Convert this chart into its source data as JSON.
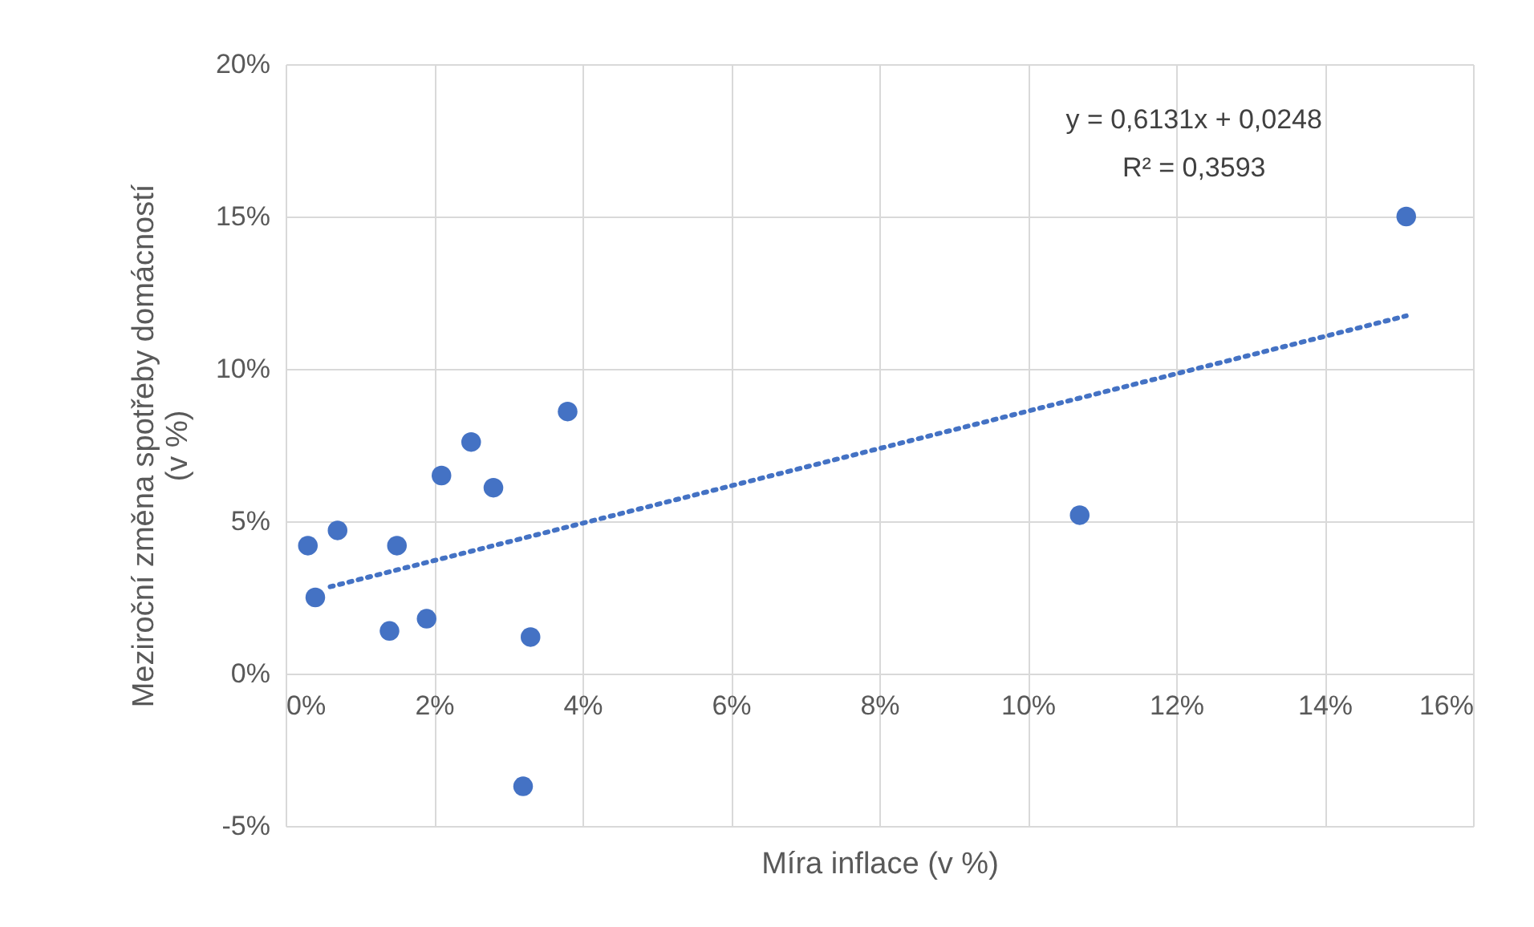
{
  "chart_data": {
    "type": "scatter",
    "xlabel": "Míra inflace (v %)",
    "ylabel": "Meziroční změna spotřeby domácností\n(v %)",
    "xlim": [
      0,
      16
    ],
    "ylim": [
      -5,
      20
    ],
    "xticks": [
      {
        "value": 0,
        "label": "0%"
      },
      {
        "value": 2,
        "label": "2%"
      },
      {
        "value": 4,
        "label": "4%"
      },
      {
        "value": 6,
        "label": "6%"
      },
      {
        "value": 8,
        "label": "8%"
      },
      {
        "value": 10,
        "label": "10%"
      },
      {
        "value": 12,
        "label": "12%"
      },
      {
        "value": 14,
        "label": "14%"
      },
      {
        "value": 16,
        "label": "16%"
      }
    ],
    "yticks": [
      {
        "value": -5,
        "label": "-5%"
      },
      {
        "value": 0,
        "label": "0%"
      },
      {
        "value": 5,
        "label": "5%"
      },
      {
        "value": 10,
        "label": "10%"
      },
      {
        "value": 15,
        "label": "15%"
      },
      {
        "value": 20,
        "label": "20%"
      }
    ],
    "grid": true,
    "series": [
      {
        "marker": "circle",
        "color": "#4472c4",
        "x": [
          0.3,
          0.4,
          0.7,
          1.4,
          1.5,
          1.9,
          2.1,
          2.5,
          2.8,
          3.2,
          3.3,
          3.8,
          10.7,
          15.1
        ],
        "values": [
          4.2,
          2.5,
          4.7,
          1.4,
          4.2,
          1.8,
          6.5,
          7.6,
          6.1,
          -3.7,
          1.2,
          8.6,
          5.2,
          15.0
        ]
      },
      {
        "type": "line",
        "color": "#4472c4",
        "line_style": "dotted",
        "x": [
          0.6,
          15.1
        ],
        "values": [
          2.85,
          11.74
        ]
      }
    ],
    "annotations": [
      "y = 0,6131x + 0,0248",
      "R² = 0,3593"
    ]
  }
}
